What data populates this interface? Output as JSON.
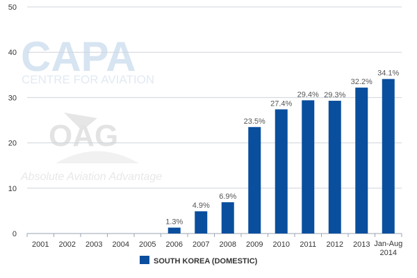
{
  "chart_data": {
    "type": "bar",
    "categories": [
      "2001",
      "2002",
      "2003",
      "2004",
      "2005",
      "2006",
      "2007",
      "2008",
      "2009",
      "2010",
      "2011",
      "2012",
      "2013",
      "Jan-Aug 2014"
    ],
    "series": [
      {
        "name": "SOUTH KOREA (DOMESTIC)",
        "values": [
          0,
          0,
          0,
          0,
          0,
          1.3,
          4.9,
          6.9,
          23.5,
          27.4,
          29.4,
          29.3,
          32.2,
          34.1
        ],
        "data_labels": [
          "",
          "",
          "",
          "",
          "",
          "1.3%",
          "4.9%",
          "6.9%",
          "23.5%",
          "27.4%",
          "29.4%",
          "29.3%",
          "32.2%",
          "34.1%"
        ]
      }
    ],
    "ylim": [
      0,
      50
    ],
    "yticks": [
      "0",
      "10",
      "20",
      "30",
      "40",
      "50"
    ],
    "grid": true,
    "legend_position": "bottom-center",
    "colors": {
      "bar": "#0A4F9E",
      "grid": "#cfd4dc",
      "axis": "#9aa3b0"
    }
  },
  "watermarks": {
    "capa_logo": "CAPA",
    "capa_tagline": "CENTRE FOR AVIATION",
    "oag_logo": "OAG",
    "oag_tagline": "Absolute Aviation Advantage"
  }
}
